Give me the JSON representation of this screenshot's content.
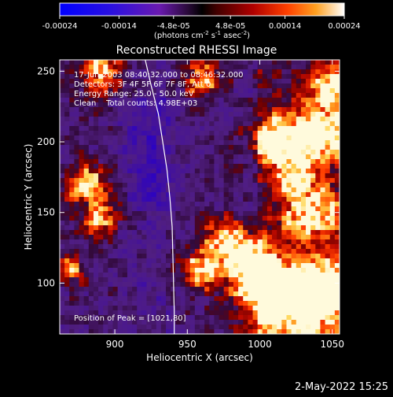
{
  "chart_data": {
    "type": "heatmap",
    "title": "Reconstructed RHESSI Image",
    "xlabel": "Heliocentric X (arcsec)",
    "ylabel": "Heliocentric Y (arcsec)",
    "xlim": [
      862,
      1055
    ],
    "ylim": [
      64,
      258
    ],
    "x_ticks": [
      900,
      950,
      1000,
      1050
    ],
    "y_ticks": [
      100,
      150,
      200,
      250
    ],
    "colorbar": {
      "range": [
        -0.00024,
        0.00024
      ],
      "tick_values": [
        -0.00024,
        -0.00014,
        -4.8e-05,
        4.8e-05,
        0.00014,
        0.00024
      ],
      "tick_labels": [
        "-0.00024",
        "-0.00014",
        "-4.8e-05",
        "4.8e-05",
        "0.00014",
        "0.00024"
      ],
      "unit_label": "(photons cm",
      "unit_exp1": "-2",
      "unit_mid": " s",
      "unit_exp2": "-1",
      "unit_end": " asec",
      "unit_exp3": "-2",
      "unit_close": ")"
    },
    "annotations": [
      "17-Jun-2003 08:40:32.000 to 08:46:32.000",
      "Detectors: 3F 4F 5F 6F 7F 8F, Att 0",
      "Energy Range: 25.0 - 50.0 keV",
      "Clean    Total counts: 4.98E+03"
    ],
    "peak_label": "Position of Peak = [1021,80]",
    "limb_curve": [
      [
        921,
        258
      ],
      [
        925,
        240
      ],
      [
        930,
        220
      ],
      [
        933,
        200
      ],
      [
        936,
        180
      ],
      [
        938,
        160
      ],
      [
        939.5,
        140
      ],
      [
        940,
        120
      ],
      [
        940.5,
        100
      ],
      [
        941,
        80
      ],
      [
        941,
        64
      ]
    ],
    "bright_regions": [
      {
        "x": 1040,
        "y": 205,
        "level": 0.9,
        "radius": 22
      },
      {
        "x": 1010,
        "y": 200,
        "level": 0.95,
        "radius": 15
      },
      {
        "x": 1035,
        "y": 150,
        "level": 0.8,
        "radius": 18
      },
      {
        "x": 1020,
        "y": 85,
        "level": 1.0,
        "radius": 30
      },
      {
        "x": 1045,
        "y": 95,
        "level": 0.95,
        "radius": 18
      },
      {
        "x": 960,
        "y": 110,
        "level": 0.7,
        "radius": 14
      },
      {
        "x": 990,
        "y": 120,
        "level": 0.75,
        "radius": 16
      },
      {
        "x": 975,
        "y": 130,
        "level": 0.7,
        "radius": 14
      },
      {
        "x": 880,
        "y": 170,
        "level": 0.75,
        "radius": 14
      },
      {
        "x": 890,
        "y": 145,
        "level": 0.7,
        "radius": 12
      },
      {
        "x": 870,
        "y": 110,
        "level": 0.6,
        "radius": 10
      },
      {
        "x": 890,
        "y": 250,
        "level": 0.7,
        "radius": 16
      },
      {
        "x": 960,
        "y": 245,
        "level": 0.6,
        "radius": 14
      },
      {
        "x": 1050,
        "y": 240,
        "level": 0.85,
        "radius": 12
      },
      {
        "x": 1025,
        "y": 175,
        "level": 0.65,
        "radius": 12
      },
      {
        "x": 1000,
        "y": 100,
        "level": 0.8,
        "radius": 16
      }
    ]
  },
  "footer": {
    "timestamp": "2-May-2022 15:25"
  }
}
